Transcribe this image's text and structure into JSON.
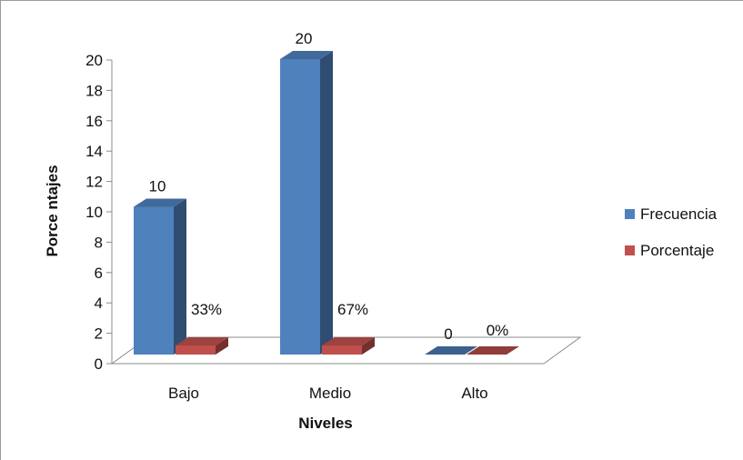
{
  "chart_data": {
    "type": "bar",
    "categories": [
      "Bajo",
      "Medio",
      "Alto"
    ],
    "series": [
      {
        "name": "Frecuencia",
        "color": "#4F81BD",
        "values": [
          10,
          20,
          0
        ],
        "labels": [
          "10",
          "20",
          "0"
        ]
      },
      {
        "name": "Porcentaje",
        "color": "#C0504D",
        "values": [
          0.33,
          0.67,
          0
        ],
        "labels": [
          "33%",
          "67%",
          "0%"
        ]
      }
    ],
    "xlabel": "Niveles",
    "ylabel": "Porce ntajes",
    "ylim": [
      0,
      20
    ],
    "yticks": [
      "0",
      "2",
      "4",
      "6",
      "8",
      "10",
      "12",
      "14",
      "16",
      "18",
      "20"
    ],
    "grid": false,
    "legend": "right",
    "style": "3d-column"
  }
}
